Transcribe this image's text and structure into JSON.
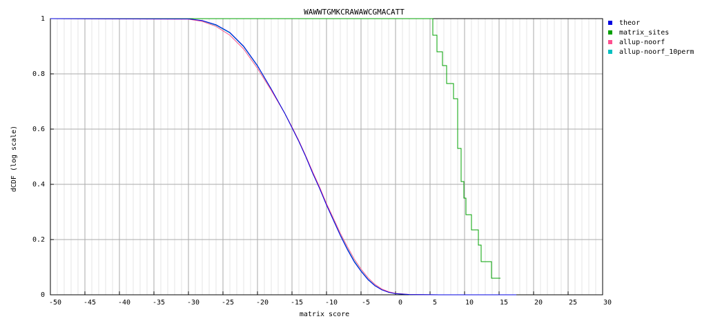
{
  "chart_data": {
    "type": "line",
    "title": "WAWWTGMKCRAWAWCGMACATT",
    "x_label": "matrix score",
    "y_label": "dCDF (log scale)",
    "xlim": [
      -50,
      30
    ],
    "ylim": [
      0,
      1
    ],
    "xticks": [
      -50,
      -45,
      -40,
      -35,
      -30,
      -25,
      -20,
      -15,
      -10,
      -5,
      0,
      5,
      10,
      15,
      20,
      25,
      30
    ],
    "yticks": [
      0,
      0.2,
      0.4,
      0.6,
      0.8,
      1
    ],
    "grid": true,
    "minor_grid_divisions": 5,
    "legend": "top-right",
    "series": [
      {
        "name": "theor",
        "color": "#0000e0",
        "x": [
          -50,
          -30,
          -28,
          -26,
          -24,
          -22,
          -20,
          -18,
          -16,
          -15,
          -14,
          -13,
          -12,
          -11,
          -10,
          -9,
          -8,
          -7,
          -6,
          -5,
          -4,
          -3,
          -2,
          -1,
          0,
          2,
          5,
          10,
          17.5
        ],
        "values": [
          1,
          0.999,
          0.993,
          0.978,
          0.95,
          0.9,
          0.83,
          0.745,
          0.655,
          0.605,
          0.555,
          0.5,
          0.44,
          0.385,
          0.325,
          0.27,
          0.215,
          0.165,
          0.12,
          0.085,
          0.055,
          0.033,
          0.018,
          0.009,
          0.004,
          0.001,
          0.0002,
          0,
          0
        ]
      },
      {
        "name": "matrix_sites",
        "color": "#00a000",
        "x": [
          -50,
          5.4,
          5.4,
          6.0,
          6.0,
          6.8,
          6.8,
          7.4,
          7.4,
          8.4,
          8.4,
          9.0,
          9.0,
          9.5,
          9.5,
          9.9,
          9.9,
          10.2,
          10.2,
          11.0,
          11.0,
          12.0,
          12.0,
          12.4,
          12.4,
          13.9,
          13.9,
          15.2
        ],
        "values": [
          1,
          1,
          0.94,
          0.94,
          0.88,
          0.88,
          0.83,
          0.83,
          0.765,
          0.765,
          0.71,
          0.71,
          0.53,
          0.53,
          0.41,
          0.41,
          0.35,
          0.35,
          0.29,
          0.29,
          0.235,
          0.235,
          0.18,
          0.18,
          0.12,
          0.12,
          0.06,
          0.06
        ]
      },
      {
        "name": "allup-noorf",
        "color": "#ff4f8f",
        "x": [
          -50,
          -30,
          -28,
          -26,
          -24,
          -22,
          -20,
          -18,
          -16,
          -15,
          -14,
          -13,
          -12,
          -11,
          -10,
          -9,
          -8,
          -7,
          -6,
          -5,
          -4,
          -3,
          -2,
          -1,
          0,
          2,
          5,
          10,
          14
        ],
        "values": [
          1,
          0.998,
          0.99,
          0.972,
          0.94,
          0.89,
          0.82,
          0.74,
          0.655,
          0.608,
          0.558,
          0.503,
          0.445,
          0.39,
          0.33,
          0.277,
          0.223,
          0.175,
          0.13,
          0.093,
          0.062,
          0.038,
          0.021,
          0.011,
          0.005,
          0.0012,
          0.0002,
          0,
          0
        ]
      },
      {
        "name": "allup-noorf_10perm",
        "color": "#00c0c0",
        "x": [
          -50,
          -30,
          -28,
          -26,
          -24,
          -22,
          -20,
          -18,
          -16,
          -15,
          -14,
          -13,
          -12,
          -11,
          -10,
          -9,
          -8,
          -7,
          -6,
          -5,
          -4,
          -3,
          -2,
          -1,
          0,
          2,
          5,
          10,
          15
        ],
        "values": [
          1,
          0.999,
          0.992,
          0.976,
          0.948,
          0.898,
          0.828,
          0.744,
          0.655,
          0.606,
          0.556,
          0.501,
          0.442,
          0.387,
          0.327,
          0.272,
          0.217,
          0.168,
          0.123,
          0.087,
          0.057,
          0.034,
          0.019,
          0.01,
          0.004,
          0.001,
          0.0002,
          0,
          0
        ]
      }
    ]
  }
}
